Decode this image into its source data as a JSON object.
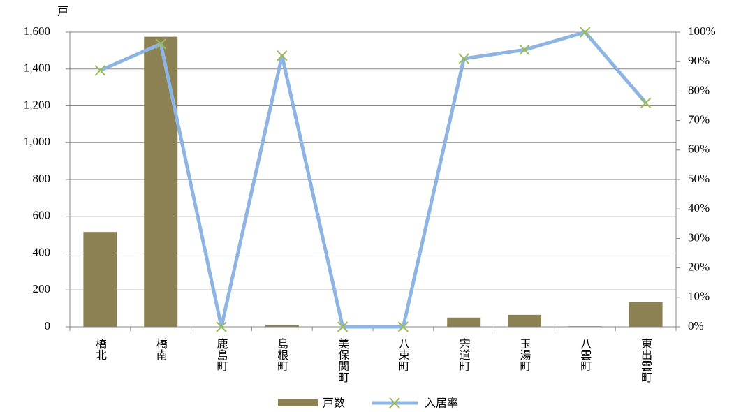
{
  "chart_data": {
    "type": "bar_line",
    "y_label": "戸",
    "categories": [
      "橋北",
      "橋南",
      "鹿島町",
      "島根町",
      "美保関町",
      "八束町",
      "宍道町",
      "玉湯町",
      "八雲町",
      "東出雲町"
    ],
    "series": [
      {
        "name": "戸数",
        "type": "bar",
        "color": "#8b8152",
        "values": [
          515,
          1575,
          0,
          10,
          0,
          0,
          50,
          65,
          3,
          135
        ]
      },
      {
        "name": "入居率",
        "type": "line",
        "color": "#8db4e2",
        "marker_color": "#9bbb59",
        "axis": "y2",
        "values": [
          87,
          96,
          0,
          92,
          0,
          0,
          91,
          94,
          100,
          76
        ]
      }
    ],
    "ylim": [
      0,
      1600
    ],
    "yticks": [
      0,
      200,
      400,
      600,
      800,
      {
        "value": 1000,
        "label": "1,000"
      },
      {
        "value": 1200,
        "label": "1,200"
      },
      {
        "value": 1400,
        "label": "1,400"
      },
      {
        "value": 1600,
        "label": "1,600"
      }
    ],
    "y2lim": [
      0,
      100
    ],
    "y2ticks": [
      {
        "value": 0,
        "label": "0%"
      },
      {
        "value": 10,
        "label": "10%"
      },
      {
        "value": 20,
        "label": "20%"
      },
      {
        "value": 30,
        "label": "30%"
      },
      {
        "value": 40,
        "label": "40%"
      },
      {
        "value": 50,
        "label": "50%"
      },
      {
        "value": 60,
        "label": "60%"
      },
      {
        "value": 70,
        "label": "70%"
      },
      {
        "value": 80,
        "label": "80%"
      },
      {
        "value": 90,
        "label": "90%"
      },
      {
        "value": 100,
        "label": "100%"
      }
    ],
    "grid": true,
    "legend": "bottom"
  }
}
